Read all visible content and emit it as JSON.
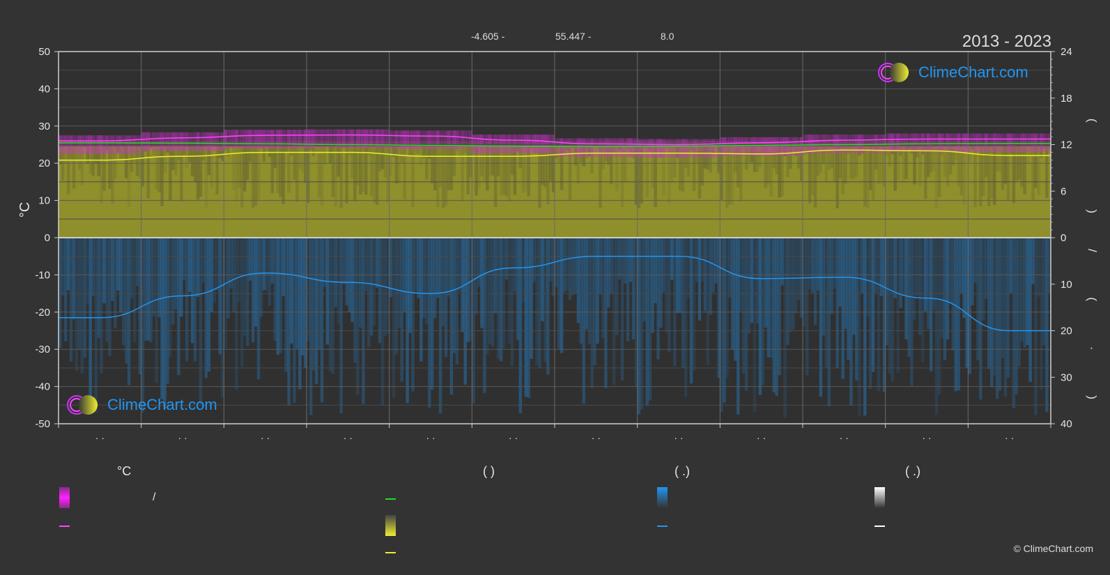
{
  "header": {
    "lon_label": "-4.605 -",
    "lat_label": "55.447 -",
    "elev_label": "8.0",
    "period": "2013 - 2023"
  },
  "logo": {
    "text": "ClimeChart.com"
  },
  "copyright": "© ClimeChart.com",
  "axes": {
    "left_unit": "°C",
    "right_upper_label": "( )",
    "right_lower_label": "/ ( · )"
  },
  "legend": {
    "col1": {
      "head": "°C",
      "row1": "/"
    },
    "col2": {
      "head": "(          )"
    },
    "col3": {
      "head": "(   .)"
    },
    "col4": {
      "head": "(   .)"
    }
  },
  "colors": {
    "background": "#333333",
    "grid": "#5a5a5a",
    "magenta": "#ff44ff",
    "green": "#22dd22",
    "yellow": "#eeee33",
    "blue": "#2196f3",
    "white": "#ffffff"
  },
  "chart_data": {
    "type": "line",
    "x_ticks": [
      "· ·",
      "· ·",
      "· ·",
      "· ·",
      "· ·",
      "· ·",
      "· ·",
      "· ·",
      "· ·",
      "· ·",
      "· ·",
      "· ·"
    ],
    "months_x": [
      0.5,
      1.5,
      2.5,
      3.5,
      4.5,
      5.5,
      6.5,
      7.5,
      8.5,
      9.5,
      10.5,
      11.5
    ],
    "y_left": {
      "min": -50,
      "max": 50,
      "ticks": [
        50,
        40,
        30,
        20,
        10,
        0,
        -10,
        -20,
        -30,
        -40,
        -50
      ]
    },
    "y_right_upper": {
      "min": 0,
      "max": 24,
      "ticks": [
        24,
        18,
        12,
        6,
        0
      ]
    },
    "y_right_lower": {
      "min": 0,
      "max": 40,
      "ticks": [
        0,
        10,
        20,
        30,
        40
      ]
    },
    "series": [
      {
        "values": [
          26.0,
          26.8,
          27.5,
          27.6,
          27.3,
          26.2,
          25.2,
          25.0,
          25.5,
          26.2,
          26.5,
          26.5
        ]
      },
      {
        "values": [
          25.5,
          25.4,
          25.2,
          25.0,
          24.8,
          24.6,
          24.5,
          24.6,
          24.8,
          25.0,
          25.2,
          25.3
        ]
      },
      {
        "values": [
          10.0,
          10.5,
          11.0,
          11.0,
          10.5,
          10.5,
          10.9,
          10.9,
          10.8,
          11.3,
          11.2,
          10.6
        ]
      },
      {
        "values": [
          17.2,
          12.5,
          7.6,
          9.6,
          12.0,
          6.5,
          4.0,
          4.0,
          8.8,
          8.5,
          13.0,
          20.0
        ]
      }
    ],
    "bars": {
      "sunshine_hours_fill_top": 11.8,
      "daylight_top": 12.1
    }
  }
}
